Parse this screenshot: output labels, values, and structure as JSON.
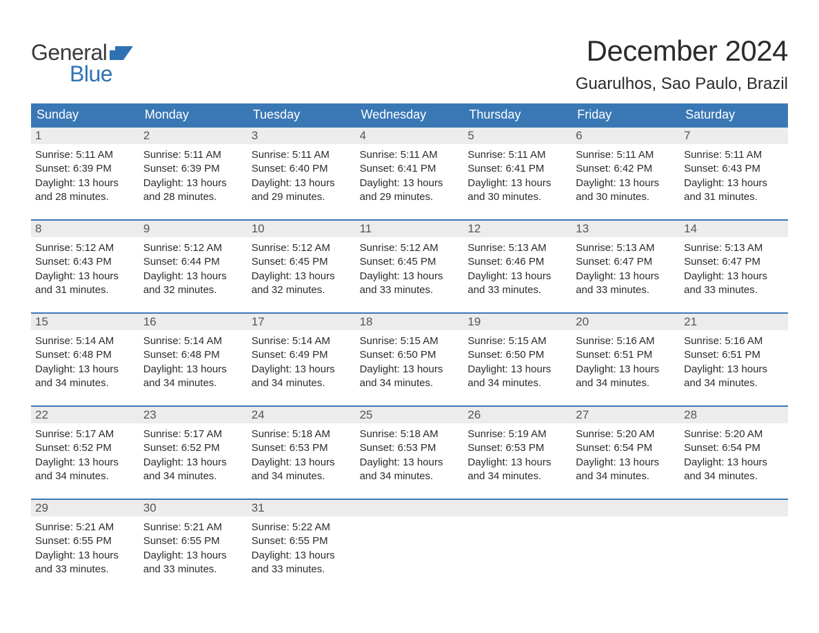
{
  "brand": {
    "word1": "General",
    "word2": "Blue",
    "word1_color": "#3a3a3a",
    "word2_color": "#2f72b3",
    "flag_color": "#2f72b3"
  },
  "title": {
    "month": "December 2024",
    "location": "Guarulhos, Sao Paulo, Brazil",
    "month_fontsize": 42,
    "location_fontsize": 24,
    "color": "#2b2b2b"
  },
  "style": {
    "header_bg": "#3a78b5",
    "header_text": "#ffffff",
    "daynum_bg": "#ececec",
    "daynum_text": "#555555",
    "body_text": "#2b2b2b",
    "week_border": "#3a78b5",
    "page_bg": "#ffffff",
    "body_fontsize": 15,
    "header_fontsize": 18,
    "daynum_fontsize": 17
  },
  "weekdays": [
    "Sunday",
    "Monday",
    "Tuesday",
    "Wednesday",
    "Thursday",
    "Friday",
    "Saturday"
  ],
  "weeks": [
    [
      {
        "n": "1",
        "sunrise": "5:11 AM",
        "sunset": "6:39 PM",
        "daylight": "13 hours and 28 minutes."
      },
      {
        "n": "2",
        "sunrise": "5:11 AM",
        "sunset": "6:39 PM",
        "daylight": "13 hours and 28 minutes."
      },
      {
        "n": "3",
        "sunrise": "5:11 AM",
        "sunset": "6:40 PM",
        "daylight": "13 hours and 29 minutes."
      },
      {
        "n": "4",
        "sunrise": "5:11 AM",
        "sunset": "6:41 PM",
        "daylight": "13 hours and 29 minutes."
      },
      {
        "n": "5",
        "sunrise": "5:11 AM",
        "sunset": "6:41 PM",
        "daylight": "13 hours and 30 minutes."
      },
      {
        "n": "6",
        "sunrise": "5:11 AM",
        "sunset": "6:42 PM",
        "daylight": "13 hours and 30 minutes."
      },
      {
        "n": "7",
        "sunrise": "5:11 AM",
        "sunset": "6:43 PM",
        "daylight": "13 hours and 31 minutes."
      }
    ],
    [
      {
        "n": "8",
        "sunrise": "5:12 AM",
        "sunset": "6:43 PM",
        "daylight": "13 hours and 31 minutes."
      },
      {
        "n": "9",
        "sunrise": "5:12 AM",
        "sunset": "6:44 PM",
        "daylight": "13 hours and 32 minutes."
      },
      {
        "n": "10",
        "sunrise": "5:12 AM",
        "sunset": "6:45 PM",
        "daylight": "13 hours and 32 minutes."
      },
      {
        "n": "11",
        "sunrise": "5:12 AM",
        "sunset": "6:45 PM",
        "daylight": "13 hours and 33 minutes."
      },
      {
        "n": "12",
        "sunrise": "5:13 AM",
        "sunset": "6:46 PM",
        "daylight": "13 hours and 33 minutes."
      },
      {
        "n": "13",
        "sunrise": "5:13 AM",
        "sunset": "6:47 PM",
        "daylight": "13 hours and 33 minutes."
      },
      {
        "n": "14",
        "sunrise": "5:13 AM",
        "sunset": "6:47 PM",
        "daylight": "13 hours and 33 minutes."
      }
    ],
    [
      {
        "n": "15",
        "sunrise": "5:14 AM",
        "sunset": "6:48 PM",
        "daylight": "13 hours and 34 minutes."
      },
      {
        "n": "16",
        "sunrise": "5:14 AM",
        "sunset": "6:48 PM",
        "daylight": "13 hours and 34 minutes."
      },
      {
        "n": "17",
        "sunrise": "5:14 AM",
        "sunset": "6:49 PM",
        "daylight": "13 hours and 34 minutes."
      },
      {
        "n": "18",
        "sunrise": "5:15 AM",
        "sunset": "6:50 PM",
        "daylight": "13 hours and 34 minutes."
      },
      {
        "n": "19",
        "sunrise": "5:15 AM",
        "sunset": "6:50 PM",
        "daylight": "13 hours and 34 minutes."
      },
      {
        "n": "20",
        "sunrise": "5:16 AM",
        "sunset": "6:51 PM",
        "daylight": "13 hours and 34 minutes."
      },
      {
        "n": "21",
        "sunrise": "5:16 AM",
        "sunset": "6:51 PM",
        "daylight": "13 hours and 34 minutes."
      }
    ],
    [
      {
        "n": "22",
        "sunrise": "5:17 AM",
        "sunset": "6:52 PM",
        "daylight": "13 hours and 34 minutes."
      },
      {
        "n": "23",
        "sunrise": "5:17 AM",
        "sunset": "6:52 PM",
        "daylight": "13 hours and 34 minutes."
      },
      {
        "n": "24",
        "sunrise": "5:18 AM",
        "sunset": "6:53 PM",
        "daylight": "13 hours and 34 minutes."
      },
      {
        "n": "25",
        "sunrise": "5:18 AM",
        "sunset": "6:53 PM",
        "daylight": "13 hours and 34 minutes."
      },
      {
        "n": "26",
        "sunrise": "5:19 AM",
        "sunset": "6:53 PM",
        "daylight": "13 hours and 34 minutes."
      },
      {
        "n": "27",
        "sunrise": "5:20 AM",
        "sunset": "6:54 PM",
        "daylight": "13 hours and 34 minutes."
      },
      {
        "n": "28",
        "sunrise": "5:20 AM",
        "sunset": "6:54 PM",
        "daylight": "13 hours and 34 minutes."
      }
    ],
    [
      {
        "n": "29",
        "sunrise": "5:21 AM",
        "sunset": "6:55 PM",
        "daylight": "13 hours and 33 minutes."
      },
      {
        "n": "30",
        "sunrise": "5:21 AM",
        "sunset": "6:55 PM",
        "daylight": "13 hours and 33 minutes."
      },
      {
        "n": "31",
        "sunrise": "5:22 AM",
        "sunset": "6:55 PM",
        "daylight": "13 hours and 33 minutes."
      },
      null,
      null,
      null,
      null
    ]
  ],
  "labels": {
    "sunrise": "Sunrise:",
    "sunset": "Sunset:",
    "daylight": "Daylight:"
  }
}
